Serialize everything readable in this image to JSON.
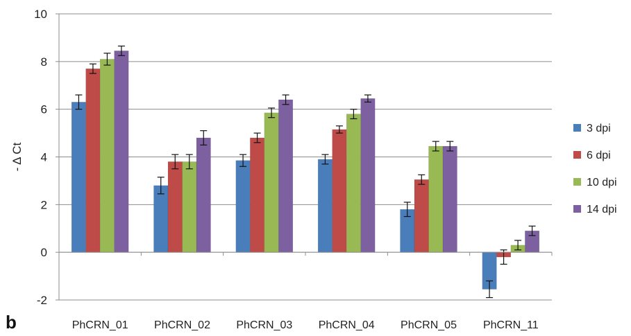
{
  "panel_label": "b",
  "chart_data": {
    "type": "bar",
    "title": "",
    "xlabel": "",
    "ylabel": "- Δ Ct",
    "ylim": [
      -2,
      10
    ],
    "yticks": [
      -2,
      0,
      2,
      4,
      6,
      8,
      10
    ],
    "grid": true,
    "legend_position": "right",
    "categories": [
      "PhCRN_01",
      "PhCRN_02",
      "PhCRN_03",
      "PhCRN_04",
      "PhCRN_05",
      "PhCRN_11"
    ],
    "series": [
      {
        "name": "3 dpi",
        "color": "#4a7ebb",
        "values": [
          6.3,
          2.8,
          3.85,
          3.9,
          1.8,
          -1.55
        ],
        "errors": [
          0.3,
          0.35,
          0.25,
          0.2,
          0.3,
          0.35
        ]
      },
      {
        "name": "6 dpi",
        "color": "#be4b48",
        "values": [
          7.7,
          3.8,
          4.8,
          5.15,
          3.05,
          -0.2
        ],
        "errors": [
          0.2,
          0.3,
          0.2,
          0.15,
          0.2,
          0.3
        ]
      },
      {
        "name": "10 dpi",
        "color": "#98b954",
        "values": [
          8.1,
          3.8,
          5.85,
          5.8,
          4.45,
          0.3
        ],
        "errors": [
          0.25,
          0.3,
          0.2,
          0.2,
          0.2,
          0.2
        ]
      },
      {
        "name": "14 dpi",
        "color": "#7d60a0",
        "values": [
          8.45,
          4.8,
          6.4,
          6.45,
          4.45,
          0.9
        ],
        "errors": [
          0.2,
          0.3,
          0.2,
          0.15,
          0.2,
          0.2
        ]
      }
    ]
  }
}
